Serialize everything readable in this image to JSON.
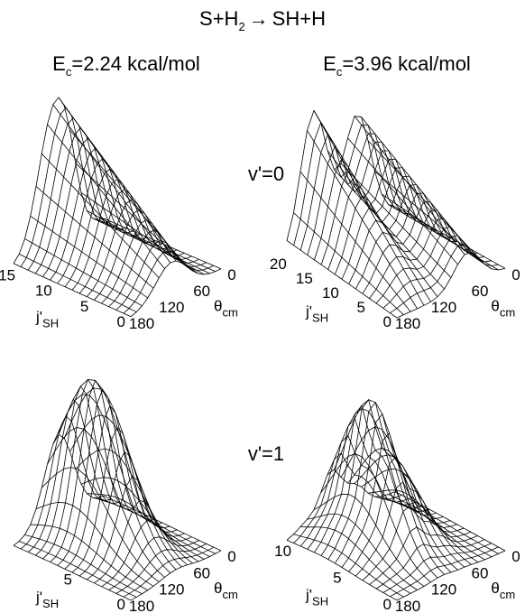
{
  "header": {
    "reactants": "S+H",
    "subscript": "2",
    "arrow": "→",
    "products": "SH+H"
  },
  "columns": [
    {
      "symbol": "E",
      "subscript": "c",
      "value": "=2.24 kcal/mol"
    },
    {
      "symbol": "E",
      "subscript": "c",
      "value": "=3.96 kcal/mol"
    }
  ],
  "rows": [
    "v'=0",
    "v'=1"
  ],
  "panels": [
    {
      "jticks": [
        15,
        10,
        5,
        0
      ],
      "jlim": [
        0,
        16
      ],
      "thetaticks": [
        0,
        60,
        120,
        180
      ],
      "thetalim": [
        0,
        180
      ],
      "jlabel": "j'",
      "jsub": "SH",
      "thetalabel": "θ",
      "thetasub": "cm"
    },
    {
      "jticks": [
        20,
        15,
        10,
        5,
        0
      ],
      "jlim": [
        0,
        21
      ],
      "thetaticks": [
        0,
        60,
        120,
        180
      ],
      "thetalim": [
        0,
        180
      ],
      "jlabel": "j'",
      "jsub": "SH",
      "thetalabel": "θ",
      "thetasub": "cm"
    },
    {
      "jticks": [
        5,
        0
      ],
      "jlim": [
        0,
        11
      ],
      "thetaticks": [
        0,
        60,
        120,
        180
      ],
      "thetalim": [
        0,
        180
      ],
      "jlabel": "j'",
      "jsub": "SH",
      "thetalabel": "θ",
      "thetasub": "cm"
    },
    {
      "jticks": [
        10,
        5,
        0
      ],
      "jlim": [
        0,
        11
      ],
      "thetaticks": [
        0,
        60,
        120,
        180
      ],
      "thetalim": [
        0,
        180
      ],
      "jlabel": "j'",
      "jsub": "SH",
      "thetalabel": "θ",
      "thetasub": "cm"
    }
  ]
}
